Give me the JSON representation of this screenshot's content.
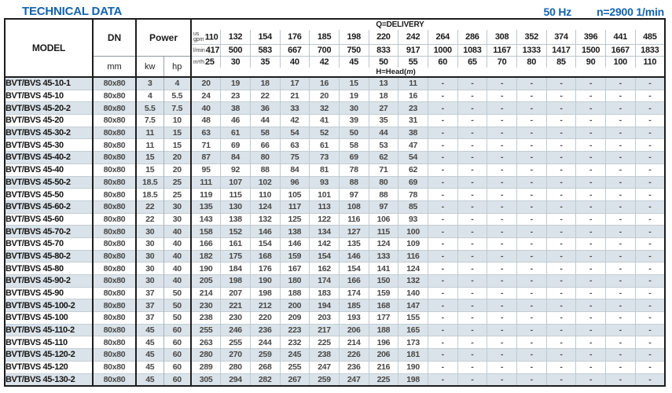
{
  "page": {
    "title": "TECHNICAL DATA",
    "frequency": "50 Hz",
    "speed": "n=2900 1/min"
  },
  "table": {
    "headers": {
      "model": "MODEL",
      "dn": "DN",
      "dn_unit": "mm",
      "power": "Power",
      "power_unit_kw": "kw",
      "power_unit_hp": "hp",
      "delivery_label": "Q=DELIVERY",
      "head_label": {
        "prefix": "H=Head(",
        "unit": "m",
        "suffix": ")"
      }
    },
    "units": {
      "gpm_top": "us",
      "gpm_bottom": "gpm",
      "lmin": "l/min",
      "m3h": "m³/h"
    },
    "delivery": {
      "us_gpm": [
        110,
        132,
        154,
        176,
        185,
        198,
        220,
        242,
        264,
        286,
        308,
        352,
        374,
        396,
        441,
        485
      ],
      "l_min": [
        417,
        500,
        583,
        667,
        700,
        750,
        833,
        917,
        1000,
        1083,
        1167,
        1333,
        1417,
        1500,
        1667,
        1833
      ],
      "m3_h": [
        25,
        30,
        35,
        40,
        42,
        45,
        50,
        55,
        60,
        65,
        70,
        80,
        85,
        90,
        100,
        110
      ]
    },
    "rows": [
      {
        "model": "BVT/BVS 45-10-1",
        "dn": "80x80",
        "kw": "3",
        "hp": "4",
        "head": [
          20,
          19,
          18,
          17,
          16,
          15,
          13,
          11,
          "-",
          "-",
          "-",
          "-",
          "-",
          "-",
          "-",
          "-"
        ]
      },
      {
        "model": "BVT/BVS 45-10",
        "dn": "80x80",
        "kw": "4",
        "hp": "5.5",
        "head": [
          24,
          23,
          22,
          21,
          20,
          19,
          18,
          16,
          "-",
          "-",
          "-",
          "-",
          "-",
          "-",
          "-",
          "-"
        ]
      },
      {
        "model": "BVT/BVS 45-20-2",
        "dn": "80x80",
        "kw": "5.5",
        "hp": "7.5",
        "head": [
          40,
          38,
          36,
          33,
          32,
          30,
          27,
          23,
          "-",
          "-",
          "-",
          "-",
          "-",
          "-",
          "-",
          "-"
        ]
      },
      {
        "model": "BVT/BVS 45-20",
        "dn": "80x80",
        "kw": "7.5",
        "hp": "10",
        "head": [
          48,
          46,
          44,
          42,
          41,
          39,
          35,
          31,
          "-",
          "-",
          "-",
          "-",
          "-",
          "-",
          "-",
          "-"
        ]
      },
      {
        "model": "BVT/BVS 45-30-2",
        "dn": "80x80",
        "kw": "11",
        "hp": "15",
        "head": [
          63,
          61,
          58,
          54,
          52,
          50,
          44,
          38,
          "-",
          "-",
          "-",
          "-",
          "-",
          "-",
          "-",
          "-"
        ]
      },
      {
        "model": "BVT/BVS 45-30",
        "dn": "80x80",
        "kw": "11",
        "hp": "15",
        "head": [
          71,
          69,
          66,
          63,
          61,
          58,
          53,
          47,
          "-",
          "-",
          "-",
          "-",
          "-",
          "-",
          "-",
          "-"
        ]
      },
      {
        "model": "BVT/BVS 45-40-2",
        "dn": "80x80",
        "kw": "15",
        "hp": "20",
        "head": [
          87,
          84,
          80,
          75,
          73,
          69,
          62,
          54,
          "-",
          "-",
          "-",
          "-",
          "-",
          "-",
          "-",
          "-"
        ]
      },
      {
        "model": "BVT/BVS 45-40",
        "dn": "80x80",
        "kw": "15",
        "hp": "20",
        "head": [
          95,
          92,
          88,
          84,
          81,
          78,
          71,
          62,
          "-",
          "-",
          "-",
          "-",
          "-",
          "-",
          "-",
          "-"
        ]
      },
      {
        "model": "BVT/BVS 45-50-2",
        "dn": "80x80",
        "kw": "18.5",
        "hp": "25",
        "head": [
          111,
          107,
          102,
          96,
          93,
          88,
          80,
          69,
          "-",
          "-",
          "-",
          "-",
          "-",
          "-",
          "-",
          "-"
        ]
      },
      {
        "model": "BVT/BVS 45-50",
        "dn": "80x80",
        "kw": "18.5",
        "hp": "25",
        "head": [
          119,
          115,
          110,
          105,
          101,
          97,
          88,
          78,
          "-",
          "-",
          "-",
          "-",
          "-",
          "-",
          "-",
          "-"
        ]
      },
      {
        "model": "BVT/BVS 45-60-2",
        "dn": "80x80",
        "kw": "22",
        "hp": "30",
        "head": [
          135,
          130,
          124,
          117,
          113,
          108,
          97,
          85,
          "-",
          "-",
          "-",
          "-",
          "-",
          "-",
          "-",
          "-"
        ]
      },
      {
        "model": "BVT/BVS 45-60",
        "dn": "80x80",
        "kw": "22",
        "hp": "30",
        "head": [
          143,
          138,
          132,
          125,
          122,
          116,
          106,
          93,
          "-",
          "-",
          "-",
          "-",
          "-",
          "-",
          "-",
          "-"
        ]
      },
      {
        "model": "BVT/BVS 45-70-2",
        "dn": "80x80",
        "kw": "30",
        "hp": "40",
        "head": [
          158,
          152,
          146,
          138,
          134,
          127,
          115,
          100,
          "-",
          "-",
          "-",
          "-",
          "-",
          "-",
          "-",
          "-"
        ]
      },
      {
        "model": "BVT/BVS 45-70",
        "dn": "80x80",
        "kw": "30",
        "hp": "40",
        "head": [
          166,
          161,
          154,
          146,
          142,
          135,
          124,
          109,
          "-",
          "-",
          "-",
          "-",
          "-",
          "-",
          "-",
          "-"
        ]
      },
      {
        "model": "BVT/BVS 45-80-2",
        "dn": "80x80",
        "kw": "30",
        "hp": "40",
        "head": [
          182,
          175,
          168,
          159,
          154,
          146,
          133,
          116,
          "-",
          "-",
          "-",
          "-",
          "-",
          "-",
          "-",
          "-"
        ]
      },
      {
        "model": "BVT/BVS 45-80",
        "dn": "80x80",
        "kw": "30",
        "hp": "40",
        "head": [
          190,
          184,
          176,
          167,
          162,
          154,
          141,
          124,
          "-",
          "-",
          "-",
          "-",
          "-",
          "-",
          "-",
          "-"
        ]
      },
      {
        "model": "BVT/BVS 45-90-2",
        "dn": "80x80",
        "kw": "30",
        "hp": "40",
        "head": [
          205,
          198,
          190,
          180,
          174,
          166,
          150,
          132,
          "-",
          "-",
          "-",
          "-",
          "-",
          "-",
          "-",
          "-"
        ]
      },
      {
        "model": "BVT/BVS 45-90",
        "dn": "80x80",
        "kw": "37",
        "hp": "50",
        "head": [
          214,
          207,
          198,
          188,
          183,
          174,
          159,
          140,
          "-",
          "-",
          "-",
          "-",
          "-",
          "-",
          "-",
          "-"
        ]
      },
      {
        "model": "BVT/BVS 45-100-2",
        "dn": "80x80",
        "kw": "37",
        "hp": "50",
        "head": [
          230,
          221,
          212,
          200,
          194,
          185,
          168,
          147,
          "-",
          "-",
          "-",
          "-",
          "-",
          "-",
          "-",
          "-"
        ]
      },
      {
        "model": "BVT/BVS 45-100",
        "dn": "80x80",
        "kw": "37",
        "hp": "50",
        "head": [
          238,
          230,
          220,
          209,
          203,
          193,
          177,
          155,
          "-",
          "-",
          "-",
          "-",
          "-",
          "-",
          "-",
          "-"
        ]
      },
      {
        "model": "BVT/BVS 45-110-2",
        "dn": "80x80",
        "kw": "45",
        "hp": "60",
        "head": [
          255,
          246,
          236,
          223,
          217,
          206,
          188,
          165,
          "-",
          "-",
          "-",
          "-",
          "-",
          "-",
          "-",
          "-"
        ]
      },
      {
        "model": "BVT/BVS 45-110",
        "dn": "80x80",
        "kw": "45",
        "hp": "60",
        "head": [
          263,
          255,
          244,
          232,
          225,
          214,
          196,
          173,
          "-",
          "-",
          "-",
          "-",
          "-",
          "-",
          "-",
          "-"
        ]
      },
      {
        "model": "BVT/BVS 45-120-2",
        "dn": "80x80",
        "kw": "45",
        "hp": "60",
        "head": [
          280,
          270,
          259,
          245,
          238,
          226,
          206,
          181,
          "-",
          "-",
          "-",
          "-",
          "-",
          "-",
          "-",
          "-"
        ]
      },
      {
        "model": "BVT/BVS 45-120",
        "dn": "80x80",
        "kw": "45",
        "hp": "60",
        "head": [
          289,
          280,
          268,
          255,
          247,
          236,
          216,
          190,
          "-",
          "-",
          "-",
          "-",
          "-",
          "-",
          "-",
          "-"
        ]
      },
      {
        "model": "BVT/BVS 45-130-2",
        "dn": "80x80",
        "kw": "45",
        "hp": "60",
        "head": [
          305,
          294,
          282,
          267,
          259,
          247,
          225,
          198,
          "-",
          "-",
          "-",
          "-",
          "-",
          "-",
          "-",
          "-"
        ]
      }
    ]
  }
}
